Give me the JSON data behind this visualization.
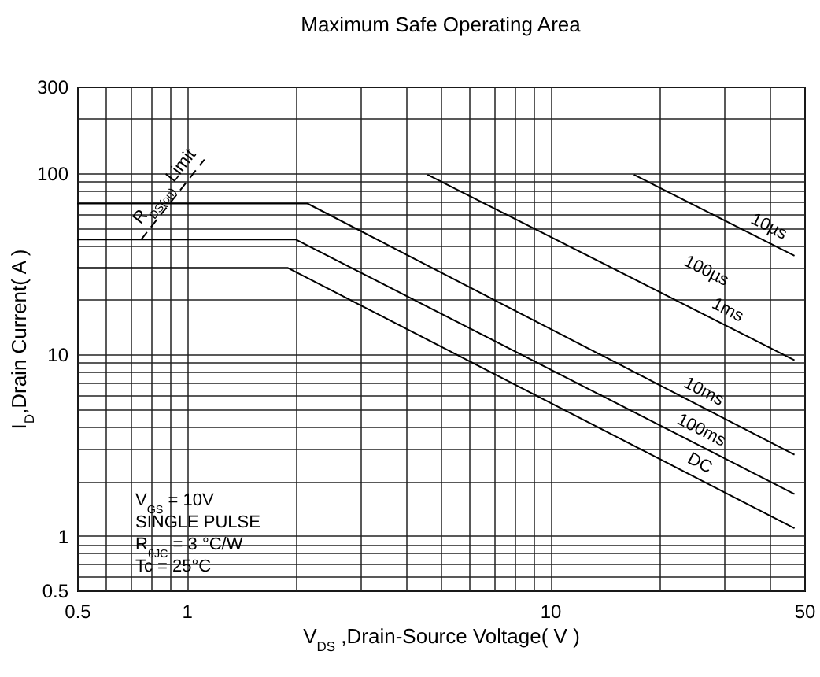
{
  "chart_data": {
    "type": "line",
    "title": "Maximum Safe Operating Area",
    "xlabel": "V$_{DS}$ ,Drain-Source Voltage( V )",
    "ylabel": "I$_{D}$,Drain Current( A )",
    "log": "xy",
    "xlim": [
      0.5,
      50
    ],
    "ylim": [
      0.5,
      300
    ],
    "xticks": [
      0.5,
      {
        "value": 0.6,
        "label": null
      },
      {
        "value": 0.7,
        "label": null
      },
      {
        "value": 0.8,
        "label": null
      },
      {
        "value": 0.9,
        "label": null
      },
      1,
      {
        "value": 2,
        "label": null
      },
      {
        "value": 3,
        "label": null
      },
      {
        "value": 4,
        "label": null
      },
      {
        "value": 5,
        "label": null
      },
      {
        "value": 6,
        "label": null
      },
      {
        "value": 7,
        "label": null
      },
      {
        "value": 8,
        "label": null
      },
      {
        "value": 9,
        "label": null
      },
      10,
      {
        "value": 20,
        "label": null
      },
      {
        "value": 30,
        "label": null
      },
      {
        "value": 40,
        "label": null
      },
      50
    ],
    "yticks": [
      0.5,
      {
        "value": 0.6,
        "label": null
      },
      {
        "value": 0.7,
        "label": null
      },
      {
        "value": 0.8,
        "label": null
      },
      {
        "value": 0.9,
        "label": null
      },
      1,
      {
        "value": 2,
        "label": null
      },
      {
        "value": 3,
        "label": null
      },
      {
        "value": 4,
        "label": null
      },
      {
        "value": 5,
        "label": null
      },
      {
        "value": 6,
        "label": null
      },
      {
        "value": 7,
        "label": null
      },
      {
        "value": 8,
        "label": null
      },
      {
        "value": 9,
        "label": null
      },
      10,
      {
        "value": 20,
        "label": null
      },
      {
        "value": 30,
        "label": null
      },
      {
        "value": 40,
        "label": null
      },
      {
        "value": 50,
        "label": null
      },
      {
        "value": 60,
        "label": null
      },
      {
        "value": 70,
        "label": null
      },
      {
        "value": 80,
        "label": null
      },
      {
        "value": 90,
        "label": null
      },
      100,
      {
        "value": 200,
        "label": null
      },
      300
    ],
    "grid": true,
    "legend": false,
    "marker": "none",
    "series": [
      {
        "name": "R$_{DS(on)}$ Limit",
        "color": "#000000",
        "line_style": "dashed",
        "x": [
          0.75,
          1.12
        ],
        "values": [
          43,
          119
        ]
      },
      {
        "name": "10µs",
        "color": "#000000",
        "line_style": "solid",
        "x": [
          17,
          47
        ],
        "values": [
          98,
          35
        ]
      },
      {
        "name": "1ms",
        "color": "#000000",
        "line_style": "solid",
        "x": [
          4.6,
          47
        ],
        "values": [
          98,
          9.3
        ]
      },
      {
        "name": "10ms",
        "color": "#000000",
        "line_style": "solid",
        "x": [
          0.5,
          2.15,
          47
        ],
        "values": [
          68,
          68,
          2.8
        ]
      },
      {
        "name": "100ms",
        "color": "#000000",
        "line_style": "solid",
        "x": [
          0.5,
          2.0,
          47
        ],
        "values": [
          43,
          43,
          1.7
        ]
      },
      {
        "name": "DC",
        "color": "#000000",
        "line_style": "solid",
        "x": [
          0.5,
          1.9,
          47
        ],
        "values": [
          30,
          30,
          1.1
        ]
      }
    ],
    "annotations": [
      "100µs",
      "V$_{GS}$ = 10V",
      "SINGLE PULSE",
      "R$_{θJC}$ = 3 °C/W",
      "Tc = 25°C"
    ]
  }
}
